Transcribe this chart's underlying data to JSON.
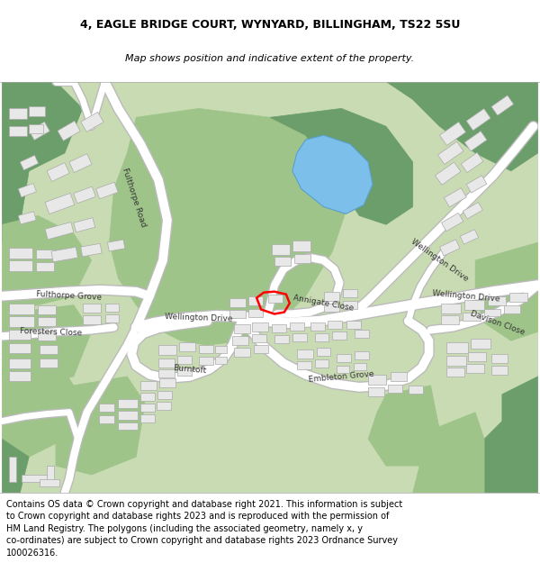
{
  "title_line1": "4, EAGLE BRIDGE COURT, WYNYARD, BILLINGHAM, TS22 5SU",
  "title_line2": "Map shows position and indicative extent of the property.",
  "footer_text": "Contains OS data © Crown copyright and database right 2021. This information is subject\nto Crown copyright and database rights 2023 and is reproduced with the permission of\nHM Land Registry. The polygons (including the associated geometry, namely x, y\nco-ordinates) are subject to Crown copyright and database rights 2023 Ordnance Survey\n100026316.",
  "bg_color": "#c9dbb2",
  "road_color": "#ffffff",
  "road_edge": "#bbbbbb",
  "building_fc": "#e8e8e8",
  "building_ec": "#aaaaaa",
  "water_color": "#7bbfea",
  "water_edge": "#5aa0cc",
  "dkgreen": "#6b9e6b",
  "mdgreen": "#9ec48a",
  "white_bg": "#ffffff",
  "prop_color": "#ff0000",
  "title_fs": 9,
  "subtitle_fs": 8,
  "footer_fs": 7,
  "road_lw": 7,
  "road_edge_lw": 9
}
